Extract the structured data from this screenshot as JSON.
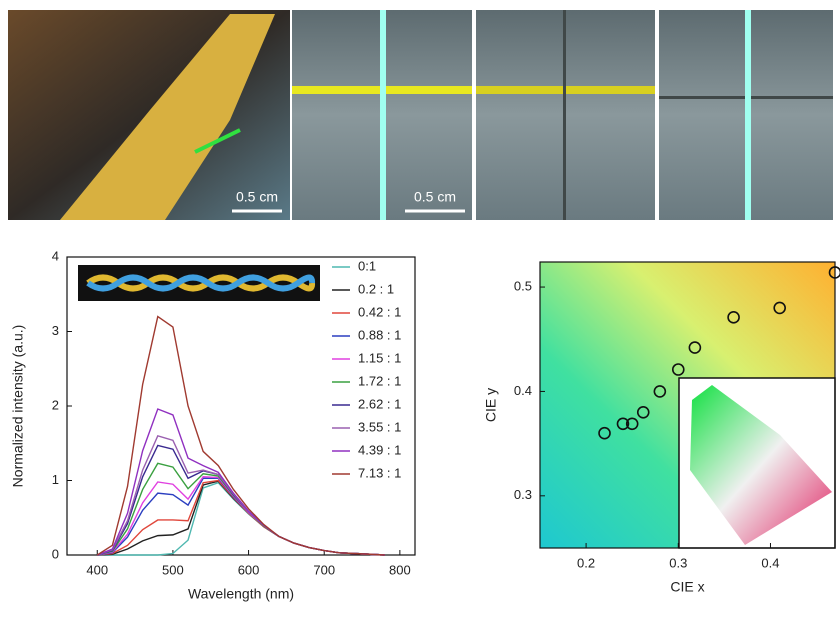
{
  "photos": {
    "scale_labels": [
      "0.5 cm",
      "0.5 cm"
    ]
  },
  "chart_data": [
    {
      "type": "line",
      "x_label": "Wavelength (nm)",
      "y_label": "Normalized intensity (a.u.)",
      "x": [
        400,
        420,
        440,
        460,
        480,
        500,
        520,
        540,
        560,
        580,
        600,
        620,
        640,
        660,
        680,
        700,
        720,
        740,
        760,
        780
      ],
      "xlim": [
        360,
        820
      ],
      "xticks": [
        400,
        500,
        600,
        700,
        800
      ],
      "ylim": [
        0,
        4
      ],
      "yticks": [
        0,
        1,
        2,
        3,
        4
      ],
      "series": [
        {
          "name": "0:1",
          "color": "#4fb8b0",
          "values": [
            0,
            0,
            0,
            0,
            0,
            0.02,
            0.2,
            0.9,
            0.97,
            0.75,
            0.55,
            0.38,
            0.25,
            0.16,
            0.1,
            0.06,
            0.03,
            0.02,
            0.01,
            0
          ]
        },
        {
          "name": "0.2 : 1",
          "color": "#222222",
          "values": [
            0,
            0.01,
            0.08,
            0.19,
            0.26,
            0.27,
            0.35,
            0.94,
            0.99,
            0.76,
            0.56,
            0.38,
            0.25,
            0.16,
            0.1,
            0.06,
            0.03,
            0.02,
            0.01,
            0
          ]
        },
        {
          "name": "0.42 : 1",
          "color": "#e0473c",
          "values": [
            0,
            0.02,
            0.13,
            0.34,
            0.47,
            0.47,
            0.46,
            0.97,
            1.0,
            0.77,
            0.56,
            0.38,
            0.25,
            0.16,
            0.1,
            0.06,
            0.03,
            0.02,
            0.01,
            0
          ]
        },
        {
          "name": "0.88 : 1",
          "color": "#2b3fc0",
          "values": [
            0,
            0.03,
            0.24,
            0.6,
            0.83,
            0.81,
            0.67,
            1.03,
            1.03,
            0.78,
            0.57,
            0.39,
            0.25,
            0.16,
            0.1,
            0.06,
            0.03,
            0.02,
            0.01,
            0
          ]
        },
        {
          "name": "1.15 : 1",
          "color": "#e040e0",
          "values": [
            0,
            0.04,
            0.28,
            0.7,
            0.98,
            0.95,
            0.75,
            1.05,
            1.04,
            0.79,
            0.57,
            0.39,
            0.25,
            0.16,
            0.1,
            0.06,
            0.03,
            0.02,
            0.01,
            0
          ]
        },
        {
          "name": "1.72 : 1",
          "color": "#3aa040",
          "values": [
            0,
            0.05,
            0.35,
            0.88,
            1.23,
            1.18,
            0.89,
            1.09,
            1.06,
            0.8,
            0.58,
            0.39,
            0.25,
            0.16,
            0.1,
            0.06,
            0.03,
            0.02,
            0.01,
            0
          ]
        },
        {
          "name": "2.62 : 1",
          "color": "#3a2a90",
          "values": [
            0,
            0.06,
            0.42,
            1.05,
            1.47,
            1.42,
            1.03,
            1.13,
            1.08,
            0.81,
            0.58,
            0.4,
            0.25,
            0.16,
            0.1,
            0.06,
            0.03,
            0.02,
            0.01,
            0
          ]
        },
        {
          "name": "3.55 : 1",
          "color": "#9a60b0",
          "values": [
            0,
            0.07,
            0.46,
            1.14,
            1.6,
            1.54,
            1.1,
            1.14,
            1.08,
            0.82,
            0.58,
            0.4,
            0.25,
            0.16,
            0.1,
            0.06,
            0.03,
            0.02,
            0.01,
            0
          ]
        },
        {
          "name": "4.39 : 1",
          "color": "#9030c0",
          "values": [
            0,
            0.08,
            0.56,
            1.4,
            1.96,
            1.88,
            1.3,
            1.2,
            1.11,
            0.83,
            0.59,
            0.4,
            0.25,
            0.16,
            0.1,
            0.06,
            0.03,
            0.02,
            0.01,
            0
          ]
        },
        {
          "name": "7.13 : 1",
          "color": "#a03a30",
          "values": [
            0,
            0.13,
            0.92,
            2.29,
            3.2,
            3.06,
            2.0,
            1.39,
            1.2,
            0.88,
            0.62,
            0.41,
            0.25,
            0.16,
            0.1,
            0.06,
            0.03,
            0.02,
            0.01,
            0
          ]
        }
      ]
    },
    {
      "type": "scatter",
      "x_label": "CIE x",
      "y_label": "CIE y",
      "x": [
        0.22,
        0.24,
        0.25,
        0.262,
        0.28,
        0.3,
        0.318,
        0.36,
        0.41,
        0.47
      ],
      "values": [
        0.36,
        0.369,
        0.369,
        0.38,
        0.4,
        0.421,
        0.442,
        0.471,
        0.48,
        0.514
      ],
      "xlim": [
        0.15,
        0.47
      ],
      "xticks": [
        0.2,
        0.3,
        0.4
      ],
      "ylim": [
        0.25,
        0.524
      ],
      "yticks": [
        0.3,
        0.4,
        0.5
      ]
    }
  ]
}
